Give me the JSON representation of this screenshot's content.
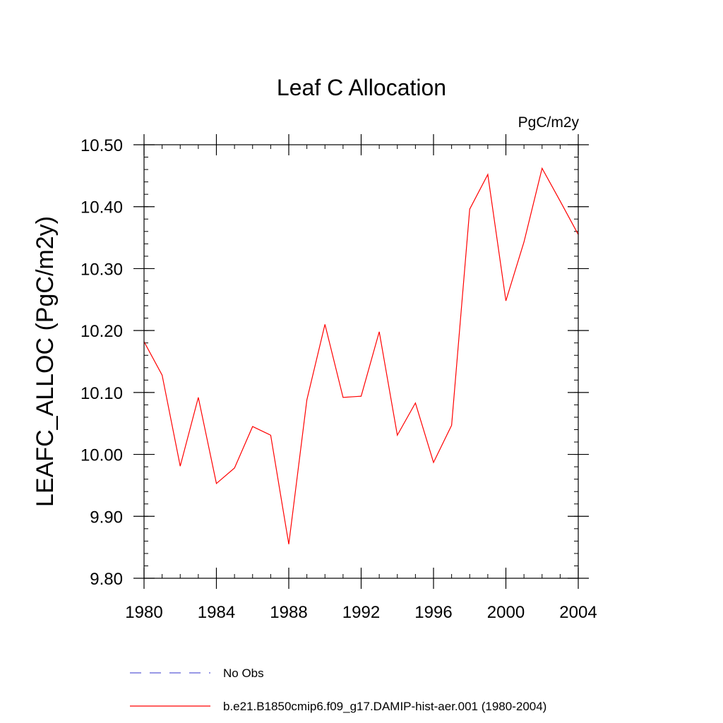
{
  "chart_data": {
    "type": "line",
    "title": "Leaf C Allocation",
    "units_label": "PgC/m2y",
    "ylabel": "LEAFC_ALLOC  (PgC/m2y)",
    "xlabel": "",
    "xlim": [
      1980,
      2004
    ],
    "ylim": [
      9.8,
      10.5
    ],
    "x_ticks": [
      1980,
      1984,
      1988,
      1992,
      1996,
      2000,
      2004
    ],
    "x_tick_labels": [
      "1980",
      "1984",
      "1988",
      "1992",
      "1996",
      "2000",
      "2004"
    ],
    "y_ticks": [
      9.8,
      9.9,
      10.0,
      10.1,
      10.2,
      10.3,
      10.4,
      10.5
    ],
    "y_tick_labels": [
      "9.80",
      "9.90",
      "10.00",
      "10.10",
      "10.20",
      "10.30",
      "10.40",
      "10.50"
    ],
    "x": [
      1980,
      1981,
      1982,
      1983,
      1984,
      1985,
      1986,
      1987,
      1988,
      1989,
      1990,
      1991,
      1992,
      1993,
      1994,
      1995,
      1996,
      1997,
      1998,
      1999,
      2000,
      2001,
      2002,
      2003,
      2004
    ],
    "series": [
      {
        "name": "b.e21.B1850cmip6.f09_g17.DAMIP-hist-aer.001 (1980-2004)",
        "color": "#ff0000",
        "values": [
          10.182,
          10.128,
          9.981,
          10.092,
          9.953,
          9.978,
          10.045,
          10.031,
          9.855,
          10.088,
          10.21,
          10.092,
          10.094,
          10.198,
          10.031,
          10.083,
          9.987,
          10.047,
          10.396,
          10.452,
          10.248,
          10.343,
          10.462,
          10.409,
          10.355
        ]
      }
    ],
    "legend": [
      {
        "label": "No Obs",
        "color": "#5b5bd6",
        "style": "dashed"
      },
      {
        "label": "b.e21.B1850cmip6.f09_g17.DAMIP-hist-aer.001 (1980-2004)",
        "color": "#ff0000",
        "style": "solid"
      }
    ],
    "grid": false,
    "legend_position": "bottom"
  }
}
